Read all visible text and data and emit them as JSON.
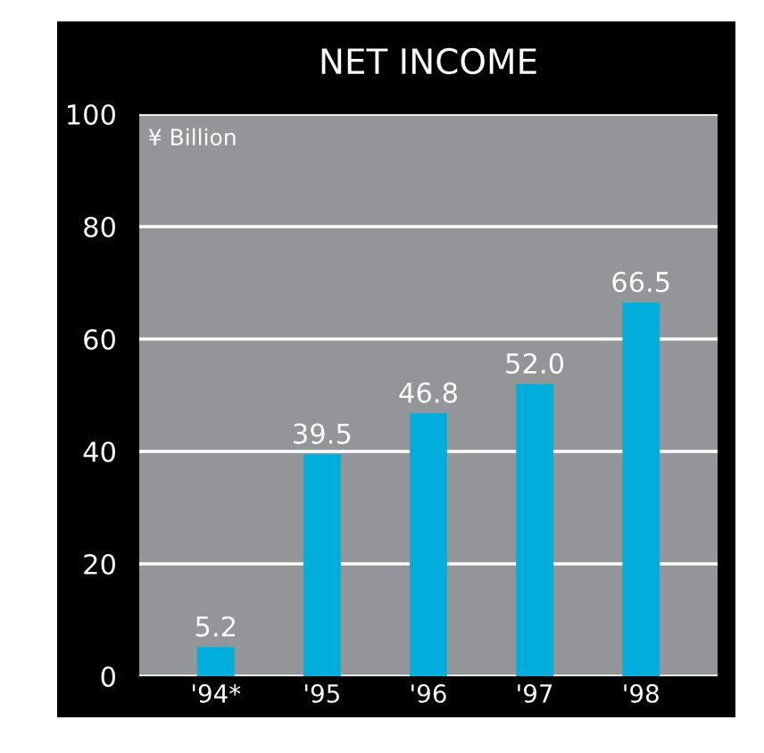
{
  "chart_data": {
    "type": "bar",
    "title": "NET INCOME",
    "ylabel": "¥ Billion",
    "categories": [
      "'94*",
      "'95",
      "'96",
      "'97",
      "'98"
    ],
    "values": [
      5.2,
      39.5,
      46.8,
      52.0,
      66.5
    ],
    "value_labels": [
      "5.2",
      "39.5",
      "46.8",
      "52.0",
      "66.5"
    ],
    "color": "#00aedb",
    "ylim": [
      0,
      100
    ],
    "yticks": [
      0,
      20,
      40,
      60,
      80,
      100
    ],
    "grid": "y"
  }
}
